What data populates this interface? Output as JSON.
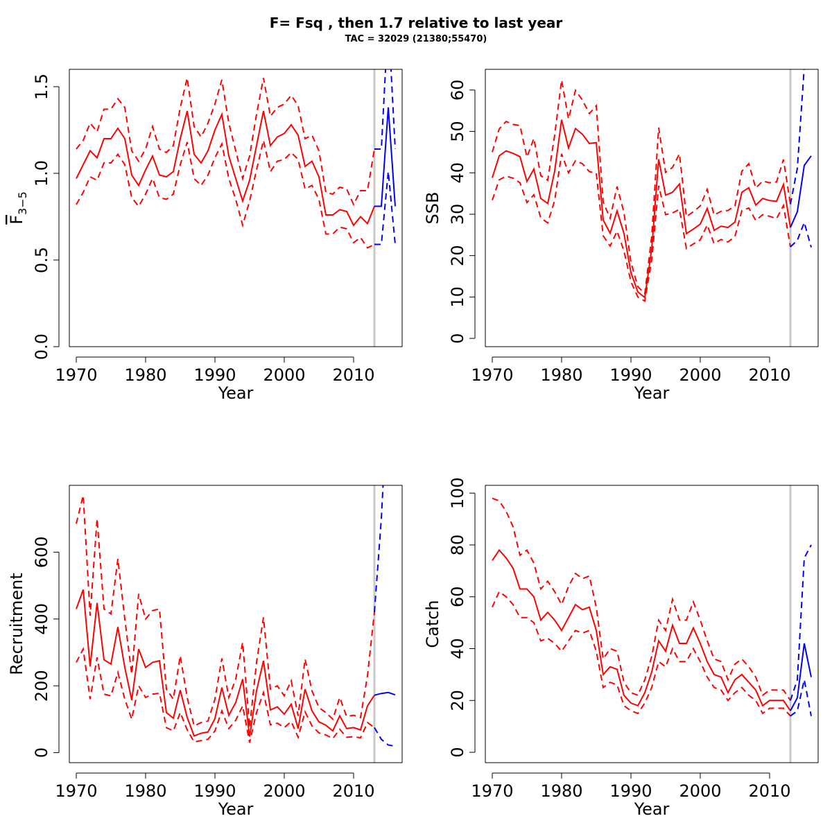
{
  "title": "F= Fsq , then 1.7  relative to last year",
  "subtitle": "TAC = 32029 (21380;55470)",
  "colors": {
    "historic": "#ff0000",
    "forecast": "#0000ff",
    "vline": "#c8c8c8",
    "axis": "#000000"
  },
  "chart_data": [
    {
      "id": "fbar",
      "type": "line",
      "ylabel_text": "F",
      "ylabel_sub": "3−5",
      "xlabel": "Year",
      "xlim": [
        1969,
        2017
      ],
      "ylim": [
        0,
        1.6
      ],
      "xticks": [
        1970,
        1980,
        1990,
        2000,
        2010
      ],
      "xtick_labels": [
        "1970",
        "1980",
        "1990",
        "2000",
        "2010"
      ],
      "yticks": [
        0,
        0.5,
        1.0,
        1.5
      ],
      "ytick_labels": [
        "0.0",
        "0.5",
        "1.0",
        "1.5"
      ],
      "vline": 2013,
      "historic": {
        "years": [
          1970,
          1971,
          1972,
          1973,
          1974,
          1975,
          1976,
          1977,
          1978,
          1979,
          1980,
          1981,
          1982,
          1983,
          1984,
          1985,
          1986,
          1987,
          1988,
          1989,
          1990,
          1991,
          1992,
          1993,
          1994,
          1995,
          1996,
          1997,
          1998,
          1999,
          2000,
          2001,
          2002,
          2003,
          2004,
          2005,
          2006,
          2007,
          2008,
          2009,
          2010,
          2011,
          2012,
          2013
        ],
        "mid": [
          0.97,
          1.05,
          1.13,
          1.09,
          1.2,
          1.2,
          1.26,
          1.2,
          0.99,
          0.93,
          1.02,
          1.1,
          0.99,
          0.98,
          1.01,
          1.2,
          1.36,
          1.11,
          1.06,
          1.13,
          1.25,
          1.34,
          1.1,
          0.97,
          0.84,
          0.96,
          1.16,
          1.36,
          1.16,
          1.21,
          1.23,
          1.28,
          1.22,
          1.04,
          1.07,
          0.98,
          0.76,
          0.76,
          0.79,
          0.78,
          0.7,
          0.75,
          0.71,
          0.81
        ],
        "upper": [
          1.14,
          1.19,
          1.29,
          1.24,
          1.37,
          1.37,
          1.43,
          1.38,
          1.13,
          1.07,
          1.14,
          1.27,
          1.14,
          1.12,
          1.16,
          1.38,
          1.55,
          1.27,
          1.21,
          1.29,
          1.4,
          1.54,
          1.29,
          1.13,
          0.97,
          1.1,
          1.34,
          1.55,
          1.33,
          1.38,
          1.4,
          1.45,
          1.39,
          1.2,
          1.22,
          1.13,
          0.89,
          0.88,
          0.92,
          0.91,
          0.82,
          0.9,
          0.9,
          1.14
        ],
        "lower": [
          0.82,
          0.89,
          0.98,
          0.96,
          1.06,
          1.06,
          1.11,
          1.05,
          0.86,
          0.81,
          0.88,
          0.97,
          0.86,
          0.85,
          0.88,
          1.05,
          1.18,
          0.97,
          0.93,
          0.99,
          1.09,
          1.17,
          0.97,
          0.85,
          0.7,
          0.84,
          1.02,
          1.19,
          1.01,
          1.07,
          1.08,
          1.12,
          1.08,
          0.91,
          0.93,
          0.85,
          0.65,
          0.65,
          0.69,
          0.68,
          0.6,
          0.63,
          0.57,
          0.59
        ]
      },
      "forecast": {
        "years": [
          2013,
          2014,
          2015,
          2016
        ],
        "mid": [
          0.81,
          0.81,
          1.38,
          0.81
        ],
        "upper": [
          1.14,
          1.14,
          1.9,
          1.14
        ],
        "lower": [
          0.59,
          0.59,
          1.01,
          0.59
        ]
      }
    },
    {
      "id": "ssb",
      "type": "line",
      "ylabel": "SSB",
      "xlabel": "Year",
      "xlim": [
        1969,
        2017
      ],
      "ylim": [
        -2,
        65
      ],
      "xticks": [
        1970,
        1980,
        1990,
        2000,
        2010
      ],
      "xtick_labels": [
        "1970",
        "1980",
        "1990",
        "2000",
        "2010"
      ],
      "yticks": [
        0,
        10,
        20,
        30,
        40,
        50,
        60
      ],
      "ytick_labels": [
        "0",
        "10",
        "20",
        "30",
        "40",
        "50",
        "60"
      ],
      "vline": 2013,
      "historic": {
        "years": [
          1970,
          1971,
          1972,
          1973,
          1974,
          1975,
          1976,
          1977,
          1978,
          1979,
          1980,
          1981,
          1982,
          1983,
          1984,
          1985,
          1986,
          1987,
          1988,
          1989,
          1990,
          1991,
          1992,
          1993,
          1994,
          1995,
          1996,
          1997,
          1998,
          1999,
          2000,
          2001,
          2002,
          2003,
          2004,
          2005,
          2006,
          2007,
          2008,
          2009,
          2010,
          2011,
          2012,
          2013
        ],
        "mid": [
          38.8,
          44.1,
          45.3,
          44.7,
          43.9,
          37.9,
          40.9,
          33.8,
          32.6,
          40.4,
          52.8,
          46.0,
          50.7,
          49.3,
          47.1,
          47.3,
          28.6,
          25.4,
          30.8,
          25.3,
          15.9,
          11.2,
          9.9,
          21.7,
          43.3,
          34.6,
          35.3,
          37.3,
          25.3,
          26.4,
          27.6,
          31.4,
          26.1,
          27.1,
          26.8,
          28.1,
          35.3,
          36.4,
          32.2,
          33.8,
          33.3,
          33.1,
          37.2,
          26.8
        ],
        "upper": [
          45.0,
          50.6,
          52.4,
          51.7,
          51.4,
          43.8,
          48.3,
          39.3,
          38.2,
          49.1,
          62.4,
          53.0,
          59.9,
          57.6,
          54.3,
          56.2,
          32.9,
          29.0,
          36.7,
          30.4,
          18.4,
          12.5,
          10.8,
          24.7,
          50.9,
          40.1,
          41.3,
          44.6,
          29.4,
          30.6,
          32.0,
          36.0,
          29.8,
          30.7,
          30.9,
          32.0,
          40.4,
          42.2,
          36.3,
          38.0,
          37.6,
          37.8,
          43.2,
          32.4
        ],
        "lower": [
          33.4,
          38.3,
          39.2,
          38.7,
          37.6,
          32.8,
          34.7,
          29.1,
          27.9,
          33.3,
          44.6,
          40.0,
          42.9,
          42.2,
          40.3,
          39.9,
          24.8,
          22.3,
          25.9,
          21.1,
          13.7,
          10.0,
          9.0,
          19.0,
          36.9,
          29.9,
          30.3,
          31.2,
          21.7,
          22.8,
          23.8,
          27.4,
          22.9,
          23.9,
          23.3,
          24.6,
          30.9,
          31.5,
          28.5,
          29.9,
          29.5,
          28.9,
          32.1,
          22.1
        ]
      },
      "forecast": {
        "years": [
          2013,
          2014,
          2015,
          2016
        ],
        "mid": [
          26.8,
          30.6,
          41.8,
          44.1
        ],
        "upper": [
          32.4,
          41.1,
          65.5,
          76.0
        ],
        "lower": [
          22.1,
          23.7,
          28.0,
          22.0
        ]
      }
    },
    {
      "id": "recruitment",
      "type": "line",
      "ylabel": "Recruitment",
      "xlabel": "Year",
      "xlim": [
        1969,
        2017
      ],
      "ylim": [
        -30,
        800
      ],
      "xticks": [
        1970,
        1980,
        1990,
        2000,
        2010
      ],
      "xtick_labels": [
        "1970",
        "1980",
        "1990",
        "2000",
        "2010"
      ],
      "yticks": [
        0,
        200,
        400,
        600
      ],
      "ytick_labels": [
        "0",
        "200",
        "400",
        "600"
      ],
      "vline": 2013,
      "historic": {
        "years": [
          1970,
          1971,
          1972,
          1973,
          1974,
          1975,
          1976,
          1977,
          1978,
          1979,
          1980,
          1981,
          1982,
          1983,
          1984,
          1985,
          1986,
          1987,
          1988,
          1989,
          1990,
          1991,
          1992,
          1993,
          1994,
          1995,
          1996,
          1997,
          1998,
          1999,
          2000,
          2001,
          2002,
          2003,
          2004,
          2005,
          2006,
          2007,
          2008,
          2009,
          2010,
          2011,
          2012,
          2013
        ],
        "mid": [
          430,
          488,
          258,
          448,
          278,
          265,
          376,
          255,
          157,
          310,
          255,
          270,
          275,
          120,
          103,
          187,
          105,
          50,
          58,
          62,
          102,
          195,
          112,
          150,
          220,
          48,
          185,
          275,
          128,
          137,
          115,
          145,
          72,
          190,
          125,
          92,
          82,
          65,
          110,
          72,
          75,
          68,
          140,
          172
        ],
        "upper": [
          685,
          770,
          410,
          700,
          430,
          415,
          580,
          400,
          235,
          475,
          400,
          425,
          430,
          190,
          160,
          290,
          165,
          80,
          90,
          95,
          160,
          282,
          165,
          220,
          330,
          75,
          270,
          405,
          190,
          200,
          170,
          215,
          110,
          280,
          185,
          135,
          120,
          100,
          165,
          108,
          112,
          105,
          230,
          420
        ],
        "lower": [
          270,
          310,
          160,
          285,
          175,
          170,
          240,
          160,
          100,
          200,
          165,
          175,
          178,
          75,
          65,
          120,
          68,
          32,
          36,
          40,
          65,
          125,
          72,
          97,
          140,
          30,
          120,
          180,
          83,
          88,
          75,
          93,
          46,
          122,
          80,
          59,
          53,
          42,
          70,
          46,
          48,
          44,
          90,
          75
        ]
      },
      "forecast": {
        "years": [
          2013,
          2014,
          2015,
          2016
        ],
        "mid": [
          172,
          177,
          180,
          173
        ],
        "upper": [
          420,
          700,
          1100,
          1500
        ],
        "lower": [
          75,
          40,
          23,
          19
        ]
      }
    },
    {
      "id": "catch",
      "type": "line",
      "ylabel": "Catch",
      "xlabel": "Year",
      "xlim": [
        1969,
        2017
      ],
      "ylim": [
        -4,
        103
      ],
      "xticks": [
        1970,
        1980,
        1990,
        2000,
        2010
      ],
      "xtick_labels": [
        "1970",
        "1980",
        "1990",
        "2000",
        "2010"
      ],
      "yticks": [
        0,
        20,
        40,
        60,
        80,
        100
      ],
      "ytick_labels": [
        "0",
        "20",
        "40",
        "60",
        "80",
        "100"
      ],
      "vline": 2013,
      "historic": {
        "years": [
          1970,
          1971,
          1972,
          1973,
          1974,
          1975,
          1976,
          1977,
          1978,
          1979,
          1980,
          1981,
          1982,
          1983,
          1984,
          1985,
          1986,
          1987,
          1988,
          1989,
          1990,
          1991,
          1992,
          1993,
          1994,
          1995,
          1996,
          1997,
          1998,
          1999,
          2000,
          2001,
          2002,
          2003,
          2004,
          2005,
          2006,
          2007,
          2008,
          2009,
          2010,
          2011,
          2012,
          2013
        ],
        "mid": [
          74,
          78,
          75,
          71,
          63,
          63,
          60,
          51,
          54,
          51,
          47,
          52,
          57,
          55,
          56,
          47,
          30,
          33,
          32,
          22,
          19,
          18,
          23,
          31,
          43,
          39,
          49,
          42,
          42,
          48,
          42,
          35,
          30,
          29,
          23,
          28,
          30,
          27,
          24,
          18,
          20,
          20,
          20,
          16
        ],
        "upper": [
          98,
          97,
          93,
          87,
          76,
          78,
          73,
          63,
          66,
          62,
          57,
          64,
          69,
          67,
          68,
          56,
          36,
          40,
          39,
          27,
          23,
          22,
          28,
          37,
          51,
          47,
          59,
          51,
          51,
          58,
          51,
          43,
          36,
          35,
          28,
          34,
          36,
          33,
          29,
          22,
          24,
          24,
          24,
          20
        ],
        "lower": [
          56,
          62,
          60,
          57,
          52,
          52,
          50,
          43,
          44,
          42,
          39,
          43,
          47,
          46,
          47,
          39,
          25,
          27,
          26,
          18,
          16,
          15,
          19,
          25,
          35,
          33,
          40,
          35,
          35,
          40,
          35,
          29,
          25,
          24,
          20,
          23,
          25,
          22,
          20,
          15,
          17,
          17,
          17,
          14
        ]
      },
      "forecast": {
        "years": [
          2013,
          2014,
          2015,
          2016
        ],
        "mid": [
          16,
          21,
          42,
          29
        ],
        "upper": [
          20,
          28,
          75,
          80
        ],
        "lower": [
          14,
          16,
          28,
          14
        ]
      }
    }
  ]
}
